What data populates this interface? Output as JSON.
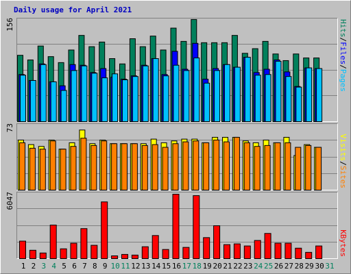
{
  "chart_data": [
    {
      "type": "bar",
      "title": "Daily usage for April 2021",
      "title_color": "#0000c0",
      "ylim": [
        0,
        156
      ],
      "yticks": [
        156
      ],
      "separator": "/",
      "series": [
        {
          "name": "Hits",
          "color": "#00805c",
          "values": [
            100,
            93,
            114,
            98,
            89,
            108,
            130,
            113,
            120,
            95,
            87,
            125,
            113,
            129,
            108,
            141,
            121,
            154,
            119,
            119,
            119,
            130,
            103,
            110,
            121,
            102,
            92,
            102,
            96,
            96,
            null
          ]
        },
        {
          "name": "Files",
          "color": "#0000ff",
          "values": [
            71,
            62,
            87,
            60,
            54,
            86,
            85,
            74,
            80,
            67,
            64,
            69,
            85,
            95,
            71,
            106,
            79,
            118,
            64,
            80,
            86,
            82,
            97,
            74,
            79,
            93,
            75,
            53,
            81,
            80,
            null
          ]
        },
        {
          "name": "Pages",
          "color": "#00c0ff",
          "values": [
            70,
            62,
            86,
            60,
            47,
            77,
            84,
            73,
            66,
            72,
            63,
            68,
            84,
            95,
            69,
            85,
            77,
            96,
            58,
            77,
            86,
            82,
            97,
            70,
            71,
            91,
            68,
            52,
            81,
            80,
            null
          ]
        }
      ]
    },
    {
      "type": "bar",
      "ylim": [
        0,
        73
      ],
      "yticks": [
        73
      ],
      "separator": "/",
      "series": [
        {
          "name": "Visits",
          "color": "#ffff00",
          "values": [
            55,
            50,
            48,
            55,
            45,
            52,
            66,
            51,
            55,
            51,
            51,
            51,
            51,
            56,
            52,
            54,
            56,
            56,
            52,
            58,
            58,
            58,
            54,
            52,
            55,
            52,
            58,
            38,
            50,
            47,
            null
          ]
        },
        {
          "name": "Sites",
          "color": "#ff8000",
          "values": [
            52,
            46,
            45,
            54,
            45,
            48,
            57,
            49,
            54,
            51,
            51,
            51,
            49,
            50,
            47,
            51,
            53,
            54,
            52,
            55,
            53,
            58,
            52,
            48,
            49,
            52,
            52,
            47,
            49,
            47,
            null
          ]
        }
      ]
    },
    {
      "type": "bar",
      "ylim": [
        0,
        6047
      ],
      "yticks": [
        6047
      ],
      "categories": [
        "1",
        "2",
        "3",
        "4",
        "5",
        "6",
        "7",
        "8",
        "9",
        "10",
        "11",
        "12",
        "13",
        "14",
        "15",
        "16",
        "17",
        "18",
        "19",
        "20",
        "21",
        "22",
        "23",
        "24",
        "25",
        "26",
        "27",
        "28",
        "29",
        "30",
        "31"
      ],
      "category_colors": [
        "#000000",
        "#000000",
        "#00805c",
        "#00805c",
        "#000000",
        "#000000",
        "#000000",
        "#000000",
        "#000000",
        "#00805c",
        "#00805c",
        "#000000",
        "#000000",
        "#000000",
        "#000000",
        "#000000",
        "#00805c",
        "#00805c",
        "#000000",
        "#000000",
        "#000000",
        "#000000",
        "#000000",
        "#00805c",
        "#00805c",
        "#000000",
        "#000000",
        "#000000",
        "#000000",
        "#000000",
        "#00805c"
      ],
      "series": [
        {
          "name": "KBytes",
          "color": "#ff0000",
          "values": [
            1590,
            760,
            510,
            3050,
            890,
            1400,
            2730,
            1210,
            5160,
            250,
            380,
            320,
            1080,
            2100,
            830,
            5860,
            1020,
            5730,
            1910,
            2990,
            1270,
            1340,
            1150,
            1650,
            2290,
            1400,
            1400,
            950,
            570,
            1150,
            null
          ]
        }
      ]
    }
  ]
}
